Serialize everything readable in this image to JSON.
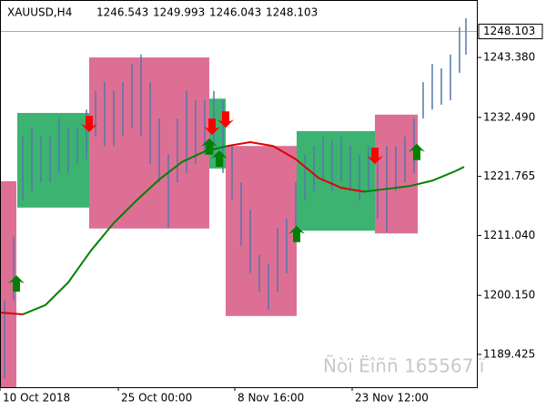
{
  "chart_data": {
    "type": "candlestick",
    "symbol": "XAUUSD,H4",
    "ohlc": [
      "1246.543",
      "1249.993",
      "1246.043",
      "1248.103"
    ],
    "watermark": "Ñòï Ëîññ 165567 ï",
    "last_price": {
      "value": 1248.103,
      "label": "1248.103"
    },
    "ylim": [
      1183.46,
      1252.5
    ],
    "xlim": [
      0,
      105
    ],
    "yticks": [
      {
        "value": 1243.38,
        "label": "1243.380"
      },
      {
        "value": 1232.49,
        "label": "1232.490"
      },
      1221.765,
      {
        "value": 1211.04,
        "label": "1211.040"
      },
      {
        "value": 1200.15,
        "label": "1200.150"
      },
      1189.425
    ],
    "xticks": [
      {
        "value": 0,
        "label": "10 Oct 2018"
      },
      {
        "value": 26,
        "label": "25 Oct 00:00"
      },
      {
        "value": 51.6,
        "label": "8 Nov 16:00"
      },
      {
        "value": 77.4,
        "label": "23 Nov 12:00"
      }
    ],
    "candle_color": "#5577aa",
    "candles": {
      "x": [
        1,
        3,
        5,
        7,
        9,
        11,
        13,
        15,
        17,
        19,
        21,
        23,
        25,
        27,
        29,
        31,
        33,
        35,
        37,
        39,
        41,
        43,
        45,
        47,
        49,
        51,
        53,
        55,
        57,
        59,
        61,
        63,
        65,
        67,
        69,
        71,
        73,
        75,
        77,
        79,
        81,
        83,
        85,
        87,
        89,
        91,
        93,
        95,
        97,
        99,
        101,
        102.4
      ],
      "high": [
        1199.2,
        1210.8,
        1229.0,
        1230.6,
        1229.0,
        1229.0,
        1232.3,
        1230.6,
        1230.6,
        1233.9,
        1237.3,
        1238.9,
        1237.3,
        1238.9,
        1242.2,
        1243.9,
        1238.9,
        1232.3,
        1225.7,
        1232.3,
        1237.3,
        1235.6,
        1235.6,
        1237.3,
        1235.6,
        1227.3,
        1220.7,
        1215.7,
        1207.5,
        1205.8,
        1212.4,
        1214.1,
        1220.7,
        1225.7,
        1227.3,
        1229.0,
        1228.2,
        1229.0,
        1227.3,
        1225.7,
        1227.3,
        1225.7,
        1227.3,
        1227.3,
        1229.0,
        1232.3,
        1238.9,
        1242.2,
        1241.4,
        1243.9,
        1248.9,
        1250.5
      ],
      "low": [
        1185.1,
        1199.2,
        1217.4,
        1219.1,
        1220.7,
        1220.7,
        1222.4,
        1222.4,
        1224.0,
        1224.9,
        1229.0,
        1227.3,
        1227.3,
        1229.0,
        1230.6,
        1229.0,
        1224.0,
        1220.7,
        1212.4,
        1220.7,
        1222.4,
        1224.0,
        1225.7,
        1225.7,
        1222.4,
        1217.4,
        1209.1,
        1204.2,
        1200.8,
        1197.5,
        1200.8,
        1204.2,
        1210.8,
        1217.4,
        1219.1,
        1220.7,
        1219.1,
        1220.7,
        1219.1,
        1217.4,
        1219.1,
        1214.1,
        1211.6,
        1219.1,
        1220.7,
        1222.4,
        1232.3,
        1233.9,
        1234.8,
        1235.6,
        1240.6,
        1243.9
      ]
    },
    "boxes": [
      {
        "x0": 0,
        "x1": 3.6,
        "top": 1220.9,
        "bottom": 1183.46,
        "color": "#dd6f95"
      },
      {
        "x0": 3.8,
        "x1": 19.6,
        "top": 1233.3,
        "bottom": 1216.1,
        "color": "#3cb371"
      },
      {
        "x0": 19.6,
        "x1": 46,
        "top": 1243.38,
        "bottom": 1212.3,
        "color": "#dd6f95"
      },
      {
        "x0": 46,
        "x1": 49.6,
        "top": 1235.9,
        "bottom": 1223.2,
        "color": "#3cb371"
      },
      {
        "x0": 49.6,
        "x1": 65.2,
        "top": 1227.3,
        "bottom": 1196.4,
        "color": "#dd6f95"
      },
      {
        "x0": 65.2,
        "x1": 82.4,
        "top": 1230.0,
        "bottom": 1211.9,
        "color": "#3cb371"
      },
      {
        "x0": 82.4,
        "x1": 91.8,
        "top": 1233.0,
        "bottom": 1211.4,
        "color": "#dd6f95"
      }
    ],
    "ma_x": [
      0,
      5,
      10,
      15,
      20,
      25,
      30,
      35,
      40,
      45,
      50,
      55,
      60,
      65,
      70,
      75,
      80,
      85,
      90,
      95,
      100,
      102
    ],
    "series": [
      {
        "color": "#e00000",
        "values": [
          1197.04,
          1196.7,
          null,
          null,
          null,
          null,
          null,
          null,
          null,
          null,
          1227.3,
          1228.0,
          1227.3,
          1224.9,
          1221.5,
          1219.7,
          1219.0,
          null,
          null,
          null,
          null,
          null
        ]
      },
      {
        "color": "#008000",
        "values": [
          null,
          1196.7,
          1198.4,
          1202.5,
          1208.3,
          1213.3,
          1217.4,
          1221.2,
          1224.4,
          1226.3,
          1227.3,
          null,
          null,
          null,
          null,
          null,
          1219.0,
          1219.5,
          1220.0,
          1221.0,
          1222.7,
          1223.5
        ]
      }
    ],
    "up_arrows": {
      "color": "#008000",
      "x": [
        3.6,
        46,
        48.2,
        65.2,
        91.6
      ],
      "y": [
        1203.8,
        1228.7,
        1226.5,
        1212.8,
        1227.7
      ]
    },
    "down_arrows": {
      "color": "#ff0000",
      "x": [
        19.6,
        46.6,
        49.6,
        82.4
      ],
      "y": [
        1229.8,
        1229.3,
        1230.6,
        1224.0
      ]
    }
  }
}
